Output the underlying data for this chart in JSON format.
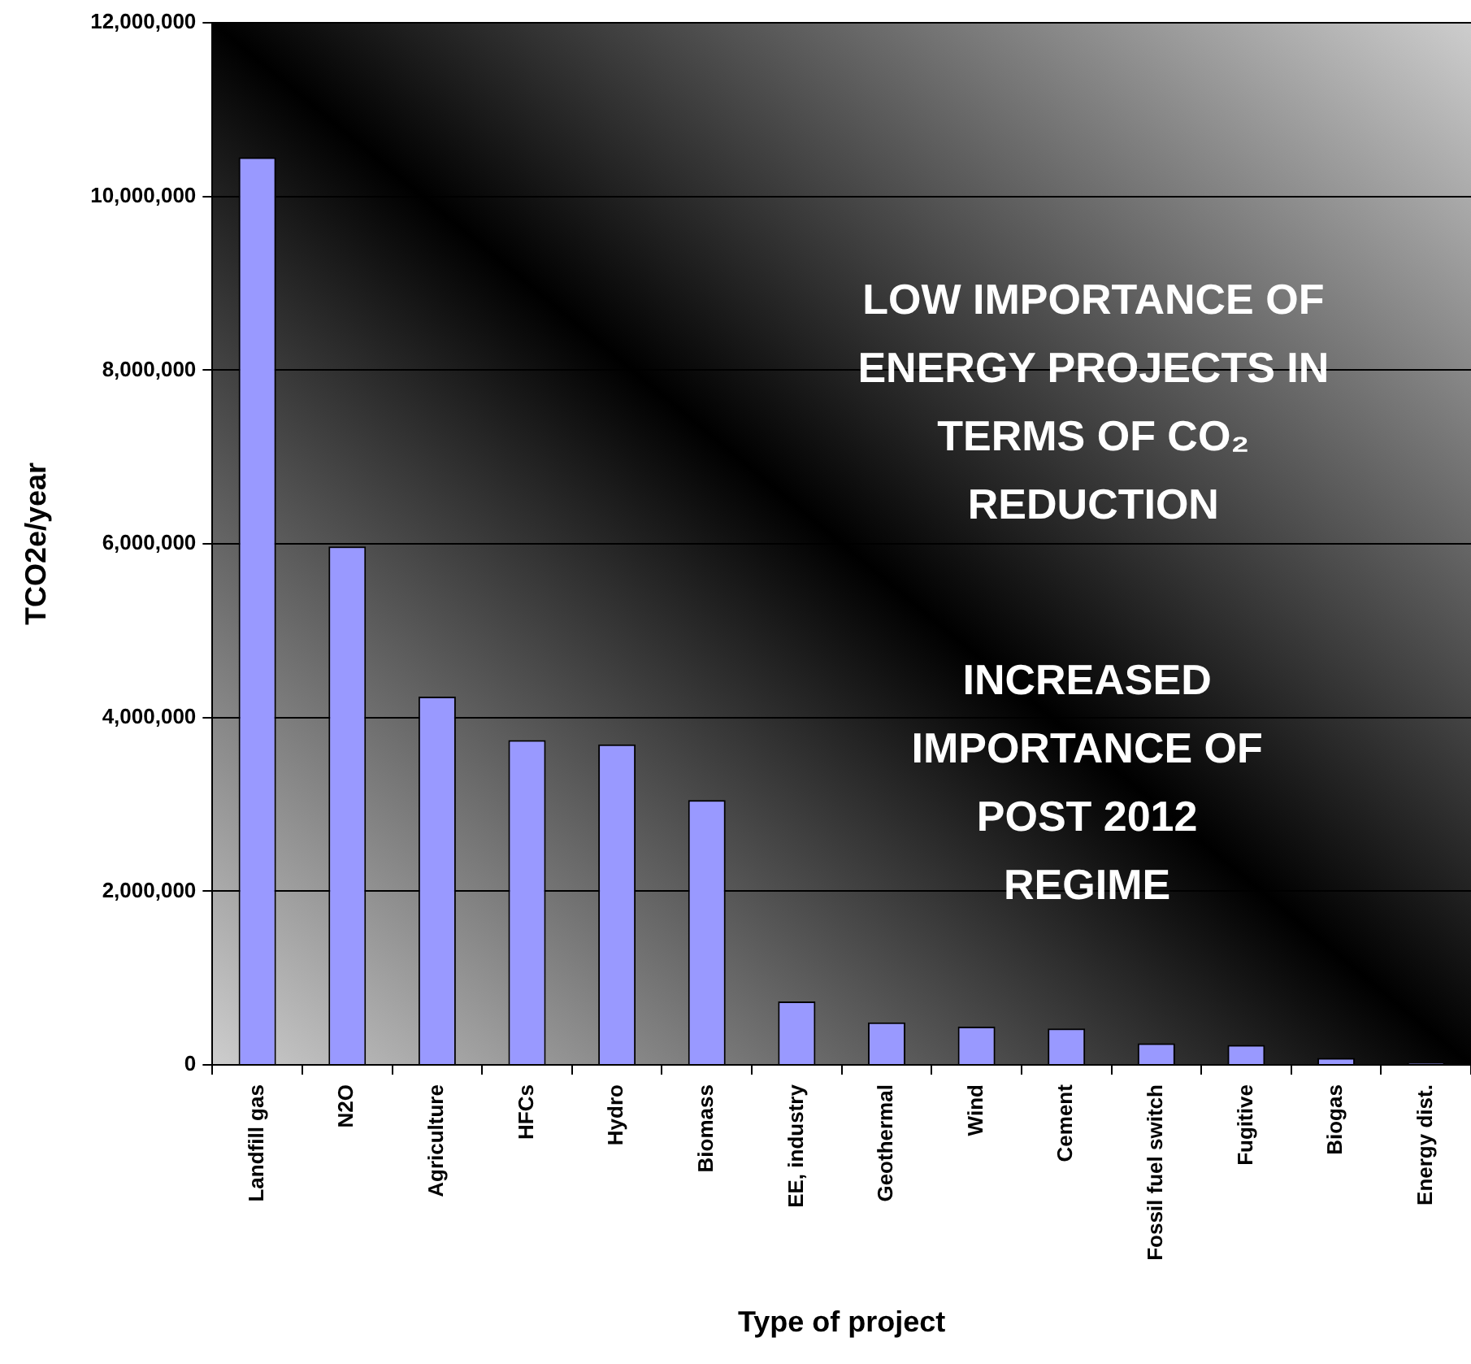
{
  "chart_data": {
    "type": "bar",
    "xlabel": "Type of project",
    "ylabel": "TCO2e/year",
    "categories": [
      "Landfill gas",
      "N2O",
      "Agriculture",
      "HFCs",
      "Hydro",
      "Biomass",
      "EE, industry",
      "Geothermal",
      "Wind",
      "Cement",
      "Fossil fuel switch",
      "Fugitive",
      "Biogas",
      "Energy dist."
    ],
    "values": [
      10450000,
      5970000,
      4240000,
      3740000,
      3690000,
      3050000,
      730000,
      490000,
      440000,
      420000,
      250000,
      230000,
      80000,
      20000
    ],
    "color": "#9999ff",
    "ylim": [
      0,
      12000000
    ],
    "yticks": [
      {
        "value": 0,
        "label": "0"
      },
      {
        "value": 2000000,
        "label": "2,000,000"
      },
      {
        "value": 4000000,
        "label": "4,000,000"
      },
      {
        "value": 6000000,
        "label": "6,000,000"
      },
      {
        "value": 8000000,
        "label": "8,000,000"
      },
      {
        "value": 10000000,
        "label": "10,000,000"
      },
      {
        "value": 12000000,
        "label": "12,000,000"
      }
    ],
    "grid": "y",
    "annotations": [
      "LOW IMPORTANCE OF ENERGY PROJECTS IN TERMS OF CO₂ REDUCTION",
      "INCREASED IMPORTANCE OF POST 2012 REGIME"
    ]
  }
}
